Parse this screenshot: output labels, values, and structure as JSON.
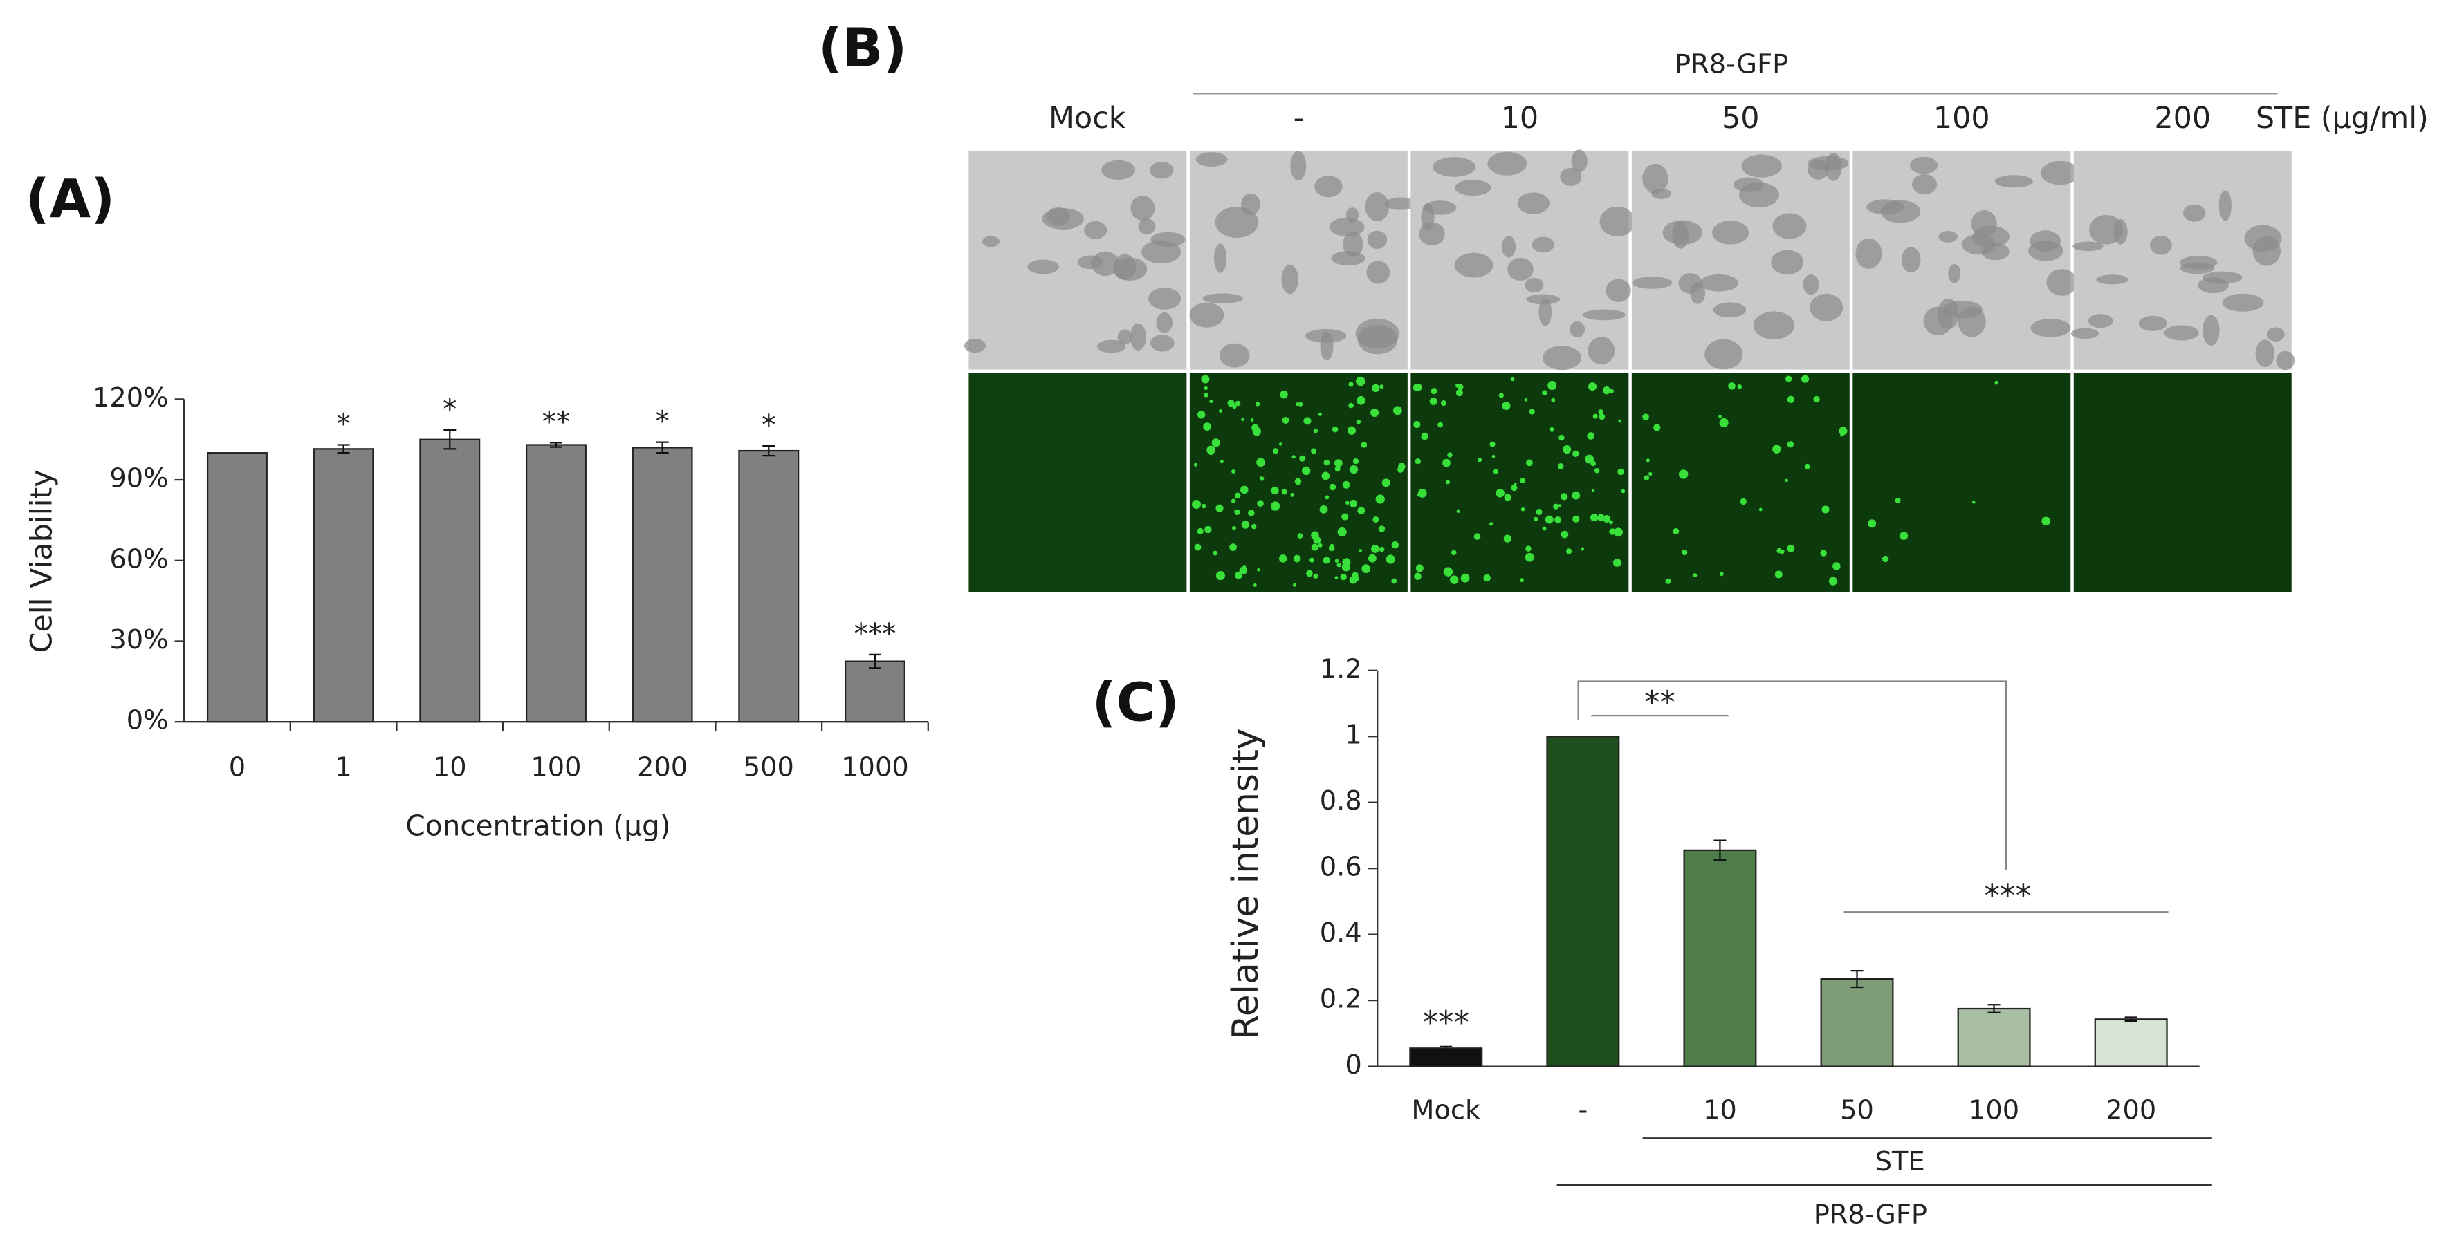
{
  "chart_data": [
    {
      "type": "bar",
      "title": "(A)",
      "y_label": "Cell Viability",
      "x_label": "Concentration (μg)",
      "categories": [
        "0",
        "1",
        "10",
        "100",
        "200",
        "500",
        "1000"
      ],
      "values": [
        100,
        101.5,
        105,
        103,
        102,
        100.8,
        22.5
      ],
      "errors": [
        0,
        1.5,
        3.5,
        0.8,
        2,
        1.8,
        2.5
      ],
      "annotations": [
        null,
        "*",
        "*",
        "**",
        "*",
        "*",
        "***"
      ],
      "color": "#808080",
      "ylim": [
        0,
        120
      ],
      "yticks": [
        {
          "value": 0,
          "label": "0%"
        },
        {
          "value": 30,
          "label": "30%"
        },
        {
          "value": 60,
          "label": "60%"
        },
        {
          "value": 90,
          "label": "90%"
        },
        {
          "value": 120,
          "label": "120%"
        }
      ]
    },
    {
      "type": "bar",
      "title": "(C)",
      "y_label": "Relative intensity",
      "categories": [
        "Mock",
        "-",
        "10",
        "50",
        "100",
        "200"
      ],
      "values": [
        0.055,
        1,
        0.655,
        0.265,
        0.175,
        0.143
      ],
      "errors": [
        0.005,
        0,
        0.03,
        0.025,
        0.012,
        0.006
      ],
      "annotations": [
        "***",
        null,
        null,
        null,
        null,
        null
      ],
      "comparisons": [
        "**",
        "***"
      ],
      "group_labels": [
        "STE",
        "PR8-GFP"
      ],
      "colors": [
        "#111111",
        "#1f4f1c",
        "#4e7d49",
        "#7e9d76",
        "#a9bfa4",
        "#d7e3d4"
      ],
      "ylim": [
        0,
        1.2
      ],
      "yticks": [
        0,
        0.2,
        0.4,
        0.6,
        0.8,
        1,
        1.2
      ]
    }
  ],
  "panel_b": {
    "label": "(B)",
    "virus": "PR8-GFP",
    "columns": [
      "Mock",
      "-",
      "10",
      "50",
      "100",
      "200"
    ],
    "treatment": "STE (μg/ml)"
  }
}
